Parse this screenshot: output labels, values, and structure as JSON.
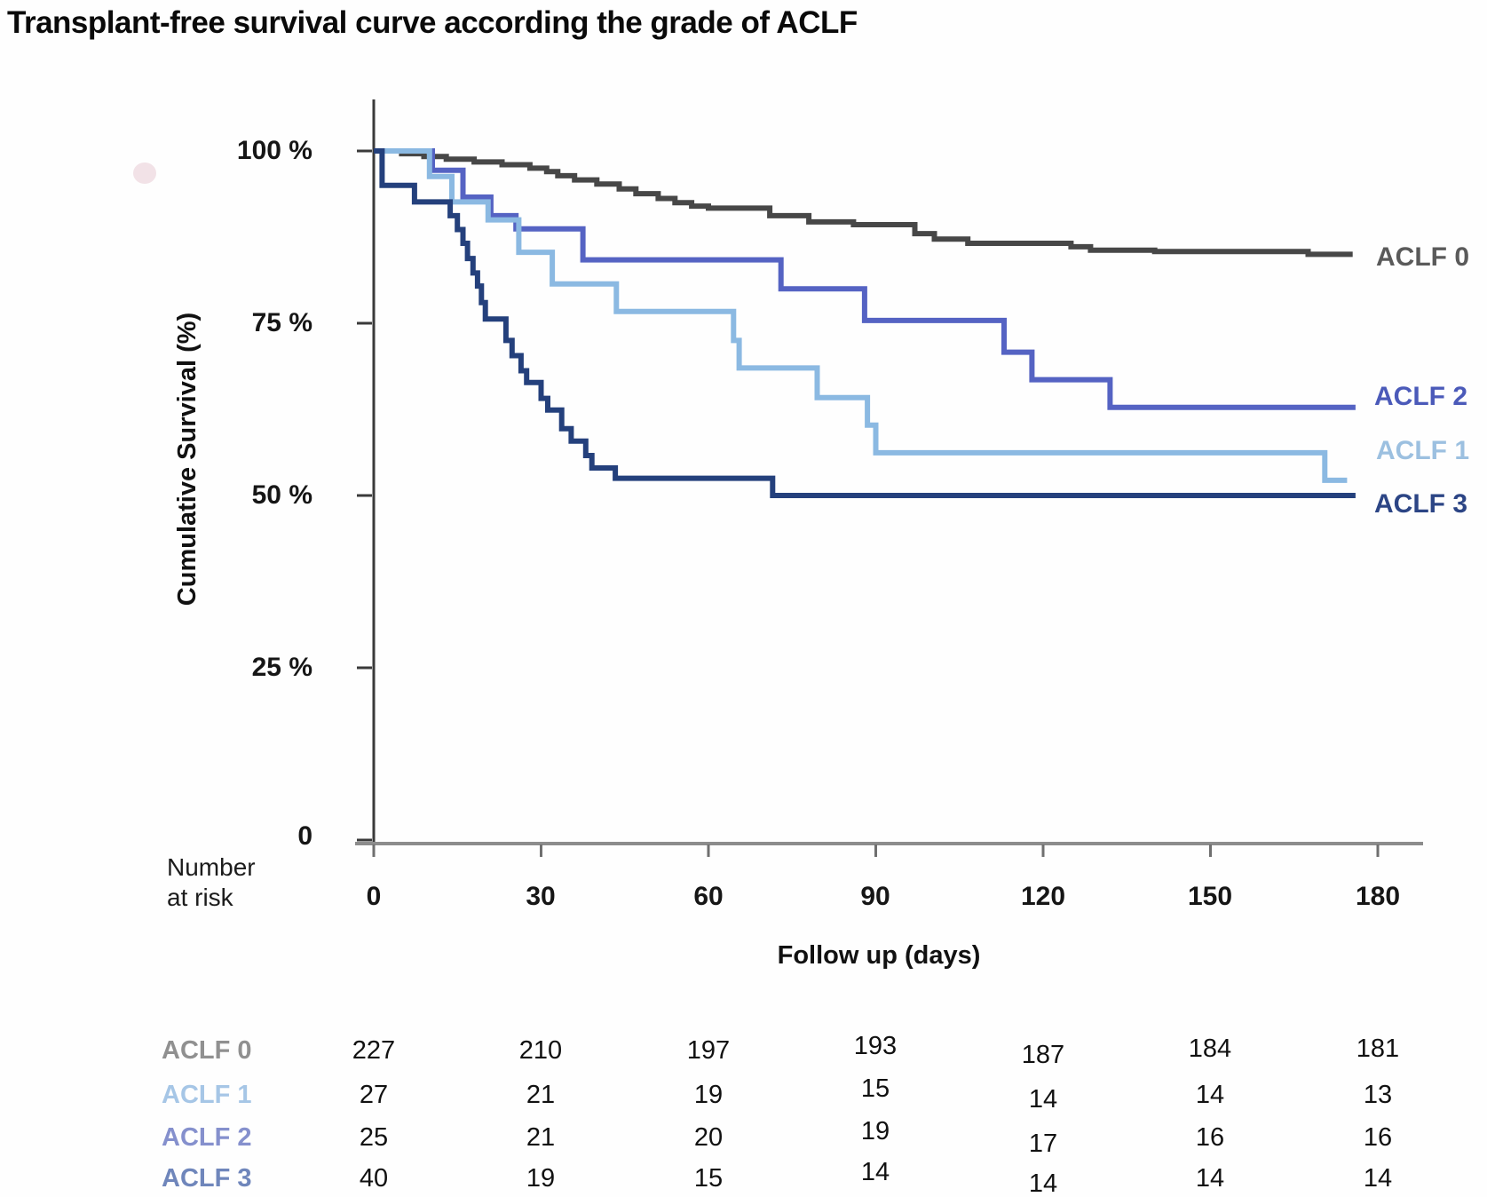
{
  "title": "Transplant-free survival curve according the grade of ACLF",
  "chart_data": {
    "type": "line",
    "subtype": "kaplan-meier-step",
    "title": "Transplant-free survival curve according the grade of ACLF",
    "xlabel": "Follow up (days)",
    "ylabel": "Cumulative Survival (%)",
    "xlim": [
      0,
      188
    ],
    "ylim": [
      0,
      100
    ],
    "grid": false,
    "legend_position": "right-of-lines",
    "x_ticks": [
      0,
      30,
      60,
      90,
      120,
      150,
      180
    ],
    "x_tick_labels": [
      "0",
      "30",
      "60",
      "90",
      "120",
      "150",
      "180"
    ],
    "y_ticks": [
      {
        "value": 100,
        "label": "100 %"
      },
      {
        "value": 75,
        "label": "75 %"
      },
      {
        "value": 50,
        "label": "50 %"
      },
      {
        "value": 25,
        "label": "25 %"
      },
      {
        "value": 0,
        "label": "0"
      }
    ],
    "series": [
      {
        "name": "ACLF 0",
        "color": "#474747",
        "label_color": "#5a5a5a",
        "points": [
          [
            0,
            100
          ],
          [
            5,
            99.6
          ],
          [
            9,
            99.2
          ],
          [
            13,
            98.8
          ],
          [
            18,
            98.4
          ],
          [
            23,
            98.0
          ],
          [
            28,
            97.5
          ],
          [
            31,
            97.0
          ],
          [
            33,
            96.4
          ],
          [
            36,
            95.8
          ],
          [
            40,
            95.2
          ],
          [
            44,
            94.5
          ],
          [
            47,
            93.8
          ],
          [
            51,
            93.1
          ],
          [
            54,
            92.5
          ],
          [
            57,
            92.0
          ],
          [
            60,
            91.7
          ],
          [
            71,
            90.6
          ],
          [
            78,
            89.7
          ],
          [
            86,
            89.3
          ],
          [
            97,
            88.0
          ],
          [
            100.5,
            87.2
          ],
          [
            106.5,
            86.6
          ],
          [
            125,
            86.1
          ],
          [
            128.5,
            85.6
          ],
          [
            140,
            85.4
          ],
          [
            167.5,
            85.0
          ],
          [
            175.5,
            85.0
          ]
        ]
      },
      {
        "name": "ACLF 1",
        "color": "#8bb9e2",
        "label_color": "#9cc0e0",
        "points": [
          [
            0,
            100
          ],
          [
            10,
            96.3
          ],
          [
            14,
            92.6
          ],
          [
            20.5,
            90.0
          ],
          [
            26,
            85.3
          ],
          [
            32,
            80.7
          ],
          [
            43.5,
            76.7
          ],
          [
            64.5,
            72.5
          ],
          [
            65.5,
            68.5
          ],
          [
            79.5,
            64.2
          ],
          [
            88.5,
            60.2
          ],
          [
            90,
            56.2
          ],
          [
            170.5,
            52.2
          ],
          [
            174.5,
            52.2
          ]
        ]
      },
      {
        "name": "ACLF 2",
        "color": "#5563c3",
        "label_color": "#4b5ab9",
        "points": [
          [
            0,
            100
          ],
          [
            10.5,
            97.2
          ],
          [
            16,
            93.3
          ],
          [
            21,
            90.6
          ],
          [
            25.5,
            88.7
          ],
          [
            37.5,
            84.2
          ],
          [
            73,
            80.0
          ],
          [
            88,
            75.4
          ],
          [
            113,
            70.8
          ],
          [
            118,
            66.8
          ],
          [
            132,
            62.8
          ],
          [
            176,
            62.8
          ]
        ]
      },
      {
        "name": "ACLF 3",
        "color": "#24407c",
        "label_color": "#2c4585",
        "points": [
          [
            0,
            100
          ],
          [
            1.5,
            95.0
          ],
          [
            7.3,
            92.6
          ],
          [
            13.7,
            90.6
          ],
          [
            15,
            88.6
          ],
          [
            16,
            86.6
          ],
          [
            16.8,
            84.4
          ],
          [
            17.8,
            82.3
          ],
          [
            18.6,
            80.4
          ],
          [
            19.3,
            78.0
          ],
          [
            20,
            75.6
          ],
          [
            23.7,
            72.5
          ],
          [
            24.8,
            70.3
          ],
          [
            26.4,
            68.1
          ],
          [
            27.4,
            66.4
          ],
          [
            30,
            64.1
          ],
          [
            31.2,
            62.4
          ],
          [
            33.7,
            59.7
          ],
          [
            35.4,
            57.9
          ],
          [
            38,
            55.8
          ],
          [
            39.1,
            54.0
          ],
          [
            43.3,
            52.5
          ],
          [
            71.5,
            50.0
          ],
          [
            176,
            50.0
          ]
        ]
      }
    ]
  },
  "risk_table": {
    "heading_line1": "Number",
    "heading_line2": "at risk",
    "columns": [
      0,
      30,
      60,
      90,
      120,
      150,
      180
    ],
    "rows": [
      {
        "label": "ACLF 0",
        "color": "#909090",
        "values": [
          "227",
          "210",
          "197",
          "193",
          "187",
          "184",
          "181"
        ]
      },
      {
        "label": "ACLF 1",
        "color": "#a6c6e6",
        "values": [
          "27",
          "21",
          "19",
          "15",
          "14",
          "14",
          "13"
        ]
      },
      {
        "label": "ACLF 2",
        "color": "#8590cd",
        "values": [
          "25",
          "21",
          "20",
          "19",
          "17",
          "16",
          "16"
        ]
      },
      {
        "label": "ACLF 3",
        "color": "#6f86bb",
        "values": [
          "40",
          "19",
          "15",
          "14",
          "14",
          "14",
          "14"
        ]
      }
    ]
  },
  "labels": {
    "follow_up": "Follow up (days)"
  }
}
